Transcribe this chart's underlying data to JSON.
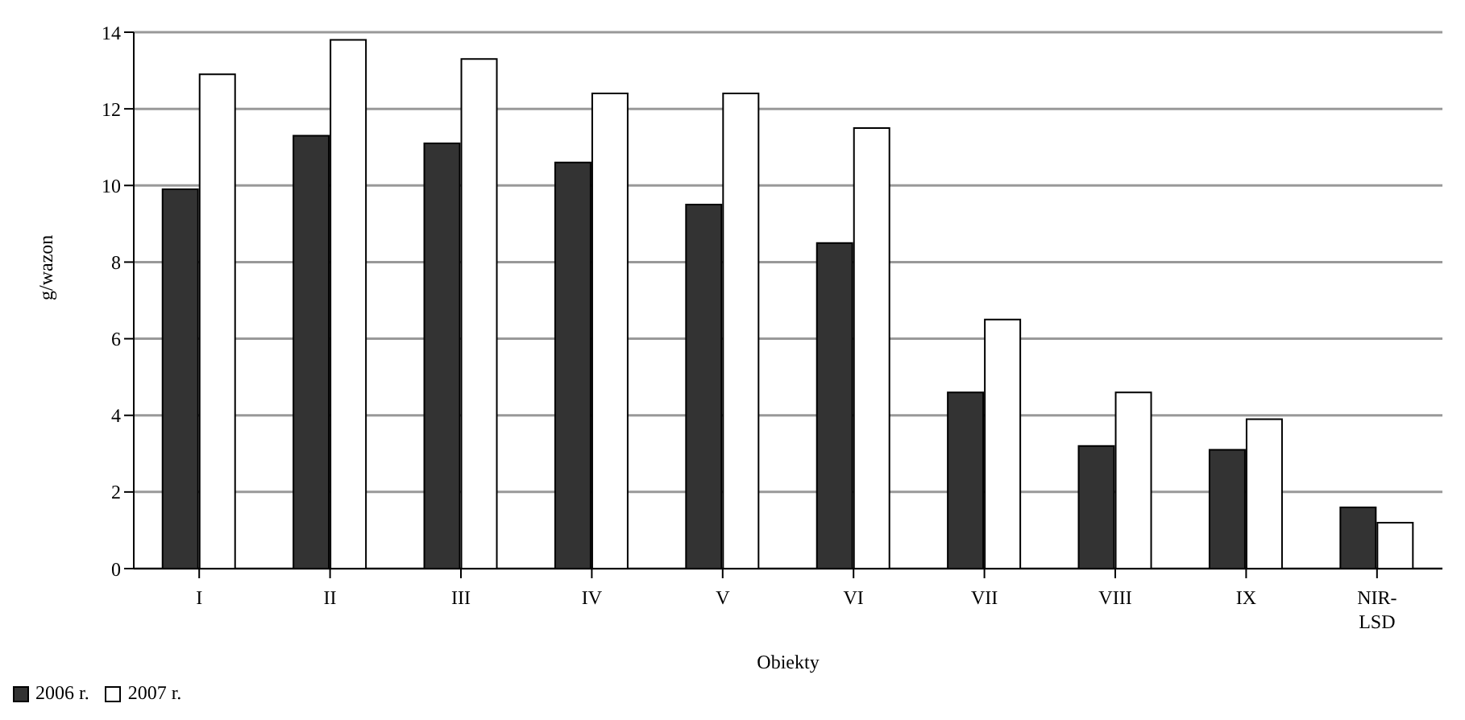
{
  "chart_data": {
    "type": "bar",
    "xlabel": "Obiekty",
    "ylabel": "g/wazon",
    "categories": [
      "I",
      "II",
      "III",
      "IV",
      "V",
      "VI",
      "VII",
      "VIII",
      "IX",
      "NIR-LSD"
    ],
    "series": [
      {
        "name": "2006 r.",
        "color": "#333333",
        "values": [
          9.9,
          11.3,
          11.1,
          10.6,
          9.5,
          8.5,
          4.6,
          3.2,
          3.1,
          1.6
        ]
      },
      {
        "name": "2007 r.",
        "color": "#ffffff",
        "values": [
          12.9,
          13.8,
          13.3,
          12.4,
          12.4,
          11.5,
          6.5,
          4.6,
          3.9,
          1.2
        ]
      }
    ],
    "ylim": [
      0,
      14
    ],
    "yticks": [
      0,
      2,
      4,
      6,
      8,
      10,
      12,
      14
    ],
    "grid": "y",
    "legend": "bottom left"
  }
}
